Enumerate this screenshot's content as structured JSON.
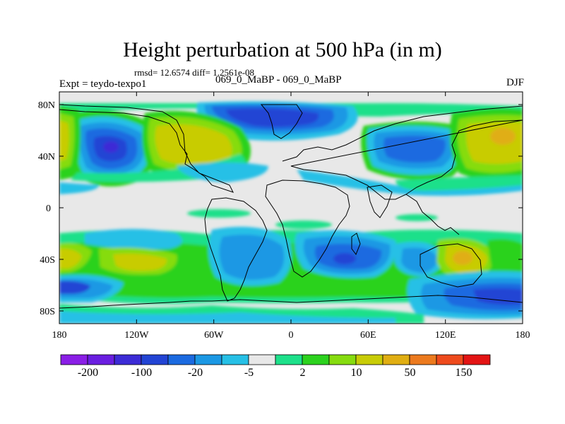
{
  "title": "Height perturbation at 500 hPa (in m)",
  "subline": "rmsd= 12.6574 diff= 1.2561e-08",
  "left_string": "Expt = teydo-texpo1",
  "center_string": "069_0_MaBP - 069_0_MaBP",
  "right_string": "DJF",
  "map": {
    "projection": "cylindrical-equidistant",
    "lon_range": [
      -180,
      180
    ],
    "lat_range": [
      -90,
      90
    ],
    "x_ticks": [
      "180",
      "120W",
      "60W",
      "0",
      "60E",
      "120E",
      "180"
    ],
    "y_ticks": [
      "80N",
      "40N",
      "0",
      "40S",
      "80S"
    ]
  },
  "colorbar": {
    "labels": [
      "-200",
      "-100",
      "-20",
      "-5",
      "2",
      "10",
      "50",
      "150"
    ],
    "colors": [
      "#8a1ee6",
      "#6a1ee0",
      "#3c2bd6",
      "#2244d4",
      "#1b6ae0",
      "#1b98e4",
      "#26c0e6",
      "#e8e8e8",
      "#1de08a",
      "#2cd21e",
      "#86dc0f",
      "#c8cc06",
      "#e0ae12",
      "#ec7a1e",
      "#ee4a1c",
      "#e31414"
    ]
  }
}
